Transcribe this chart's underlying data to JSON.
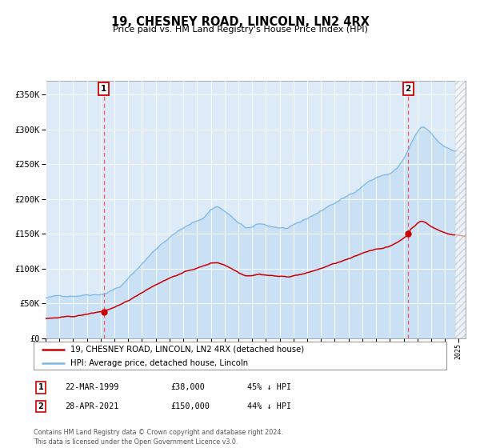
{
  "title": "19, CHESNEY ROAD, LINCOLN, LN2 4RX",
  "subtitle": "Price paid vs. HM Land Registry's House Price Index (HPI)",
  "bg_color": "#ddeaf7",
  "hpi_color": "#7ab8e8",
  "hpi_fill_color": "#c8dff4",
  "price_color": "#cc0000",
  "marker_color": "#cc0000",
  "vline_color": "#ff5555",
  "ylim": [
    0,
    370000
  ],
  "yticks": [
    0,
    50000,
    100000,
    150000,
    200000,
    250000,
    300000,
    350000
  ],
  "ytick_labels": [
    "£0",
    "£50K",
    "£100K",
    "£150K",
    "£200K",
    "£250K",
    "£300K",
    "£350K"
  ],
  "x_start_year": 1995.0,
  "x_end_year": 2025.5,
  "transaction1_year": 1999.22,
  "transaction1_price": 38000,
  "transaction2_year": 2021.32,
  "transaction2_price": 150000,
  "legend_line1": "19, CHESNEY ROAD, LINCOLN, LN2 4RX (detached house)",
  "legend_line2": "HPI: Average price, detached house, Lincoln",
  "table_row1": [
    "1",
    "22-MAR-1999",
    "£38,000",
    "45% ↓ HPI"
  ],
  "table_row2": [
    "2",
    "28-APR-2021",
    "£150,000",
    "44% ↓ HPI"
  ],
  "footnote": "Contains HM Land Registry data © Crown copyright and database right 2024.\nThis data is licensed under the Open Government Licence v3.0.",
  "hpi_waypoints_years": [
    1995.0,
    1996.0,
    1997.0,
    1998.0,
    1999.22,
    2000.5,
    2001.5,
    2002.5,
    2003.5,
    2004.5,
    2005.5,
    2006.5,
    2007.0,
    2007.5,
    2008.0,
    2008.5,
    2009.0,
    2009.5,
    2010.0,
    2010.5,
    2011.0,
    2011.5,
    2012.0,
    2012.5,
    2013.0,
    2013.5,
    2014.0,
    2014.5,
    2015.0,
    2015.5,
    2016.0,
    2016.5,
    2017.0,
    2017.5,
    2018.0,
    2018.5,
    2019.0,
    2019.5,
    2020.0,
    2020.5,
    2021.0,
    2021.32,
    2021.5,
    2022.0,
    2022.3,
    2022.6,
    2023.0,
    2023.5,
    2024.0,
    2024.5,
    2025.0,
    2025.5
  ],
  "hpi_waypoints_vals": [
    58000,
    60000,
    62000,
    65000,
    68000,
    80000,
    100000,
    122000,
    142000,
    158000,
    168000,
    178000,
    190000,
    195000,
    188000,
    180000,
    170000,
    163000,
    163000,
    167000,
    165000,
    163000,
    162000,
    161000,
    163000,
    167000,
    172000,
    178000,
    183000,
    190000,
    195000,
    200000,
    205000,
    212000,
    220000,
    228000,
    232000,
    236000,
    238000,
    245000,
    258000,
    270000,
    278000,
    295000,
    302000,
    300000,
    292000,
    280000,
    273000,
    270000,
    268000,
    265000
  ],
  "price_waypoints_years": [
    1995.0,
    1996.0,
    1997.0,
    1998.0,
    1999.22,
    2000.5,
    2001.5,
    2002.5,
    2003.5,
    2004.5,
    2005.5,
    2006.5,
    2007.0,
    2007.5,
    2008.0,
    2008.5,
    2009.0,
    2009.5,
    2010.0,
    2010.5,
    2011.0,
    2011.5,
    2012.0,
    2012.5,
    2013.0,
    2013.5,
    2014.0,
    2014.5,
    2015.0,
    2015.5,
    2016.0,
    2016.5,
    2017.0,
    2017.5,
    2018.0,
    2018.5,
    2019.0,
    2019.5,
    2020.0,
    2020.5,
    2021.0,
    2021.32,
    2021.5,
    2022.0,
    2022.3,
    2022.6,
    2023.0,
    2023.5,
    2024.0,
    2024.5,
    2025.0,
    2025.5
  ],
  "price_waypoints_vals": [
    28000,
    29000,
    30000,
    33000,
    38000,
    46000,
    57000,
    70000,
    81000,
    90000,
    97000,
    103000,
    107000,
    108000,
    105000,
    100000,
    95000,
    91000,
    92000,
    94000,
    93000,
    92000,
    91000,
    90000,
    92000,
    94000,
    96000,
    99000,
    102000,
    106000,
    109000,
    112000,
    115000,
    118000,
    122000,
    126000,
    129000,
    131000,
    133000,
    138000,
    145000,
    150000,
    158000,
    167000,
    170000,
    168000,
    162000,
    157000,
    153000,
    151000,
    150000,
    148000
  ]
}
